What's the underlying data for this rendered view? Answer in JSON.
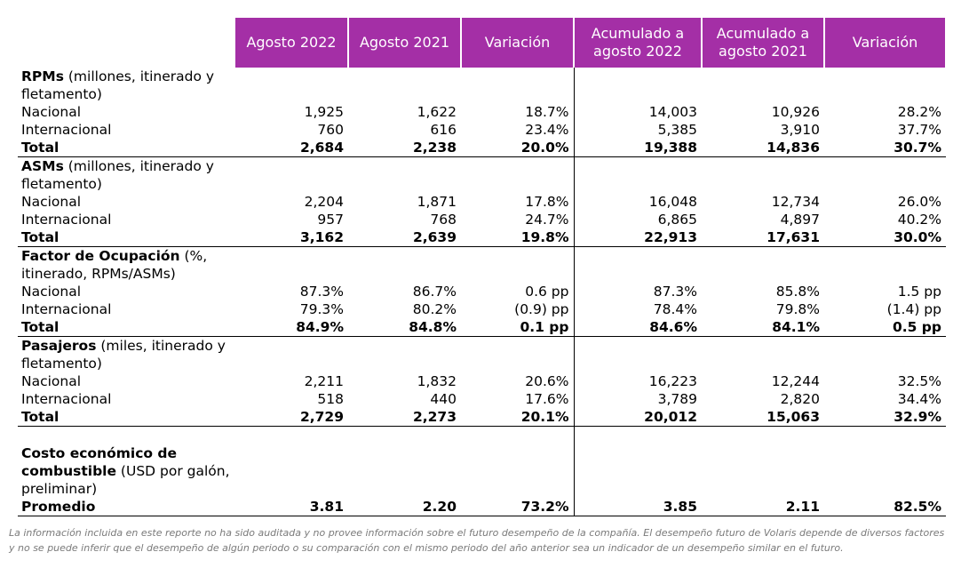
{
  "header": {
    "columns": [
      "Agosto 2022",
      "Agosto 2021",
      "Variación",
      "Acumulado a agosto 2022",
      "Acumulado a agosto 2021",
      "Variación"
    ]
  },
  "sections": [
    {
      "title_bold": "RPMs",
      "title_rest": " (millones, itinerado y fletamento)",
      "rows": [
        {
          "label": "Nacional",
          "values": [
            "1,925",
            "1,622",
            "18.7%",
            "14,003",
            "10,926",
            "28.2%"
          ]
        },
        {
          "label": "Internacional",
          "values": [
            "760",
            "616",
            "23.4%",
            "5,385",
            "3,910",
            "37.7%"
          ]
        }
      ],
      "total": {
        "label": "Total",
        "values": [
          "2,684",
          "2,238",
          "20.0%",
          "19,388",
          "14,836",
          "30.7%"
        ]
      }
    },
    {
      "title_bold": "ASMs",
      "title_rest": " (millones, itinerado y fletamento)",
      "rows": [
        {
          "label": "Nacional",
          "values": [
            "2,204",
            "1,871",
            "17.8%",
            "16,048",
            "12,734",
            "26.0%"
          ]
        },
        {
          "label": "Internacional",
          "values": [
            "957",
            "768",
            "24.7%",
            "6,865",
            "4,897",
            "40.2%"
          ]
        }
      ],
      "total": {
        "label": "Total",
        "values": [
          "3,162",
          "2,639",
          "19.8%",
          "22,913",
          "17,631",
          "30.0%"
        ]
      }
    },
    {
      "title_bold": "Factor de Ocupación",
      "title_rest": " (%, itinerado, RPMs/ASMs)",
      "rows": [
        {
          "label": "Nacional",
          "values": [
            "87.3%",
            "86.7%",
            "0.6 pp",
            "87.3%",
            "85.8%",
            "1.5 pp"
          ]
        },
        {
          "label": "Internacional",
          "values": [
            "79.3%",
            "80.2%",
            "(0.9) pp",
            "78.4%",
            "79.8%",
            "(1.4) pp"
          ]
        }
      ],
      "total": {
        "label": "Total",
        "values": [
          "84.9%",
          "84.8%",
          "0.1 pp",
          "84.6%",
          "84.1%",
          "0.5 pp"
        ]
      }
    },
    {
      "title_bold": "Pasajeros",
      "title_rest": " (miles, itinerado y fletamento)",
      "rows": [
        {
          "label": "Nacional",
          "values": [
            "2,211",
            "1,832",
            "20.6%",
            "16,223",
            "12,244",
            "32.5%"
          ]
        },
        {
          "label": "Internacional",
          "values": [
            "518",
            "440",
            "17.6%",
            "3,789",
            "2,820",
            "34.4%"
          ]
        }
      ],
      "total": {
        "label": "Total",
        "values": [
          "2,729",
          "2,273",
          "20.1%",
          "20,012",
          "15,063",
          "32.9%"
        ]
      }
    }
  ],
  "fuel": {
    "title_bold": "Costo económico de combustible",
    "title_rest": " (USD por galón, preliminar)",
    "total": {
      "label": "Promedio",
      "values": [
        "3.81",
        "2.20",
        "73.2%",
        "3.85",
        "2.11",
        "82.5%"
      ]
    }
  },
  "footnote": "La información incluida en este reporte no ha sido auditada y no provee información sobre el futuro desempeño de la compañía. El desempeño futuro de Volaris depende de diversos factores y no se puede inferir que el desempeño de algún periodo o su comparación con el mismo periodo del año anterior sea un indicador de un desempeño similar en el futuro.",
  "colors": {
    "header_bg": "#a42fa6",
    "header_text": "#ffffff",
    "footnote": "#7a7a7a"
  }
}
